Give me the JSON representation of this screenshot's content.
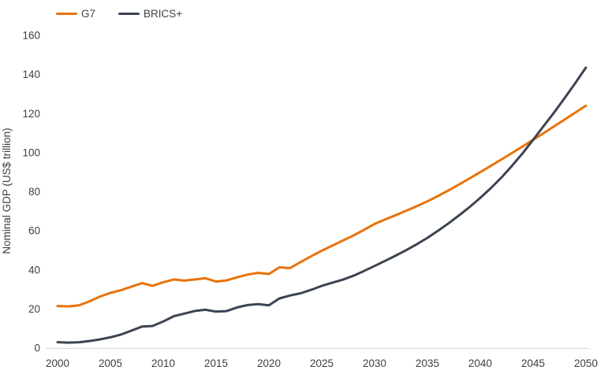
{
  "chart_data": {
    "type": "line",
    "title": "",
    "xlabel": "",
    "ylabel": "Nominal GDP (US$ trillion)",
    "legend_position": "top-left",
    "grid": false,
    "xlim": [
      2000,
      2050
    ],
    "ylim": [
      0,
      160
    ],
    "xticks": [
      2000,
      2005,
      2010,
      2015,
      2020,
      2025,
      2030,
      2035,
      2040,
      2045,
      2050
    ],
    "yticks": [
      0,
      20,
      40,
      60,
      80,
      100,
      120,
      140,
      160
    ],
    "axis_line_color": "#D9D9D9",
    "text_color": "#404040",
    "x": [
      2000,
      2001,
      2002,
      2003,
      2004,
      2005,
      2006,
      2007,
      2008,
      2009,
      2010,
      2011,
      2012,
      2013,
      2014,
      2015,
      2016,
      2017,
      2018,
      2019,
      2020,
      2021,
      2022,
      2023,
      2024,
      2025,
      2026,
      2027,
      2028,
      2029,
      2030,
      2031,
      2032,
      2033,
      2034,
      2035,
      2036,
      2037,
      2038,
      2039,
      2040,
      2041,
      2042,
      2043,
      2044,
      2045,
      2046,
      2047,
      2048,
      2049,
      2050
    ],
    "series": [
      {
        "name": "G7",
        "color": "#E8730A",
        "values": [
          21.5,
          21.3,
          21.8,
          23.8,
          26.3,
          28.2,
          29.6,
          31.4,
          33.2,
          31.8,
          33.7,
          35.1,
          34.5,
          35.1,
          35.7,
          34.0,
          34.6,
          36.2,
          37.6,
          38.5,
          37.9,
          41.3,
          40.9,
          44.0,
          47.0,
          49.8,
          52.4,
          55.0,
          57.6,
          60.5,
          63.5,
          65.8,
          68.0,
          70.3,
          72.6,
          75.1,
          77.8,
          80.7,
          83.7,
          86.8,
          90.0,
          93.2,
          96.5,
          99.8,
          103.1,
          106.5,
          110.0,
          113.5,
          117.0,
          120.5,
          124.0
        ]
      },
      {
        "name": "BRICS+",
        "color": "#3C4453",
        "values": [
          3.0,
          2.8,
          2.9,
          3.6,
          4.4,
          5.5,
          6.9,
          8.9,
          11.0,
          11.3,
          13.6,
          16.3,
          17.6,
          19.0,
          19.6,
          18.6,
          18.9,
          20.8,
          22.0,
          22.5,
          21.9,
          25.4,
          26.9,
          28.0,
          29.8,
          31.8,
          33.4,
          35.0,
          37.0,
          39.4,
          42.0,
          44.6,
          47.3,
          50.1,
          53.1,
          56.4,
          60.0,
          63.8,
          67.9,
          72.2,
          76.8,
          81.8,
          87.2,
          93.2,
          99.6,
          106.5,
          113.6,
          120.6,
          128.0,
          135.6,
          143.5
        ]
      }
    ],
    "crossover_note": {
      "year": 2045,
      "value": 106.5
    }
  }
}
